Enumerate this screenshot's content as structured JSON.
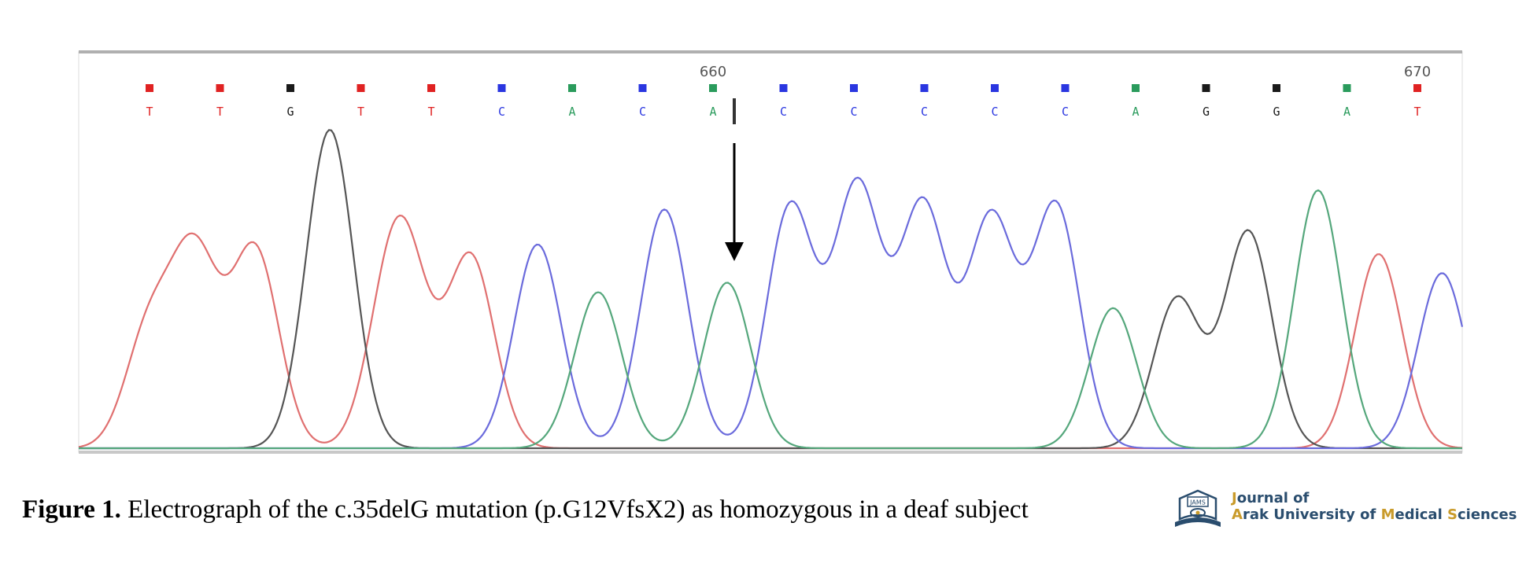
{
  "chart_data": {
    "type": "line",
    "position_labels": [
      {
        "label": "660",
        "base_index": 8
      },
      {
        "label": "670",
        "base_index": 18
      }
    ],
    "bases": [
      "T",
      "T",
      "G",
      "T",
      "T",
      "C",
      "A",
      "C",
      "A",
      "C",
      "C",
      "C",
      "C",
      "C",
      "A",
      "G",
      "G",
      "A",
      "T"
    ],
    "base_colors": {
      "A": "#2a9b5c",
      "C": "#2a36e0",
      "G": "#1a1a1a",
      "T": "#e02222"
    },
    "trace_colors": {
      "A": "#55a77c",
      "C": "#6b6bdc",
      "G": "#555555",
      "T": "#e07070"
    },
    "peaks": [
      {
        "base": "T",
        "x": 0,
        "h": 0.37
      },
      {
        "base": "T",
        "x": 0.65,
        "h": 0.59
      },
      {
        "base": "T",
        "x": 1.5,
        "h": 0.62
      },
      {
        "base": "G",
        "x": 2.56,
        "h": 1.0
      },
      {
        "base": "T",
        "x": 3.68,
        "h": 0.42
      },
      {
        "base": "T",
        "x": 3.4,
        "h": 0.37
      },
      {
        "base": "T",
        "x": 4.56,
        "h": 0.6
      },
      {
        "base": "C",
        "x": 5.51,
        "h": 0.64
      },
      {
        "base": "A",
        "x": 6.37,
        "h": 0.49
      },
      {
        "base": "C",
        "x": 7.31,
        "h": 0.75
      },
      {
        "base": "A",
        "x": 8.2,
        "h": 0.52
      },
      {
        "base": "C",
        "x": 9.1,
        "h": 0.76
      },
      {
        "base": "C",
        "x": 10.05,
        "h": 0.82
      },
      {
        "base": "C",
        "x": 10.98,
        "h": 0.76
      },
      {
        "base": "C",
        "x": 11.95,
        "h": 0.72
      },
      {
        "base": "C",
        "x": 12.87,
        "h": 0.76
      },
      {
        "base": "A",
        "x": 13.68,
        "h": 0.44
      },
      {
        "base": "G",
        "x": 14.59,
        "h": 0.47
      },
      {
        "base": "G",
        "x": 15.6,
        "h": 0.68
      },
      {
        "base": "A",
        "x": 16.59,
        "h": 0.81
      },
      {
        "base": "T",
        "x": 17.45,
        "h": 0.61
      },
      {
        "base": "C",
        "x": 18.35,
        "h": 0.55
      }
    ],
    "annotation": "deletion site arrow between base 9 and base 10"
  },
  "caption": {
    "figure_number": "Figure 1.",
    "text": " Electrograph of the c.35delG mutation (p.G12VfsX2) as homozygous in a deaf subject"
  },
  "logo": {
    "emblem_text": "JAMS",
    "line1": "Journal of",
    "line2_parts": [
      "A",
      "rak University of ",
      "M",
      "edical ",
      "S",
      "ciences"
    ]
  }
}
